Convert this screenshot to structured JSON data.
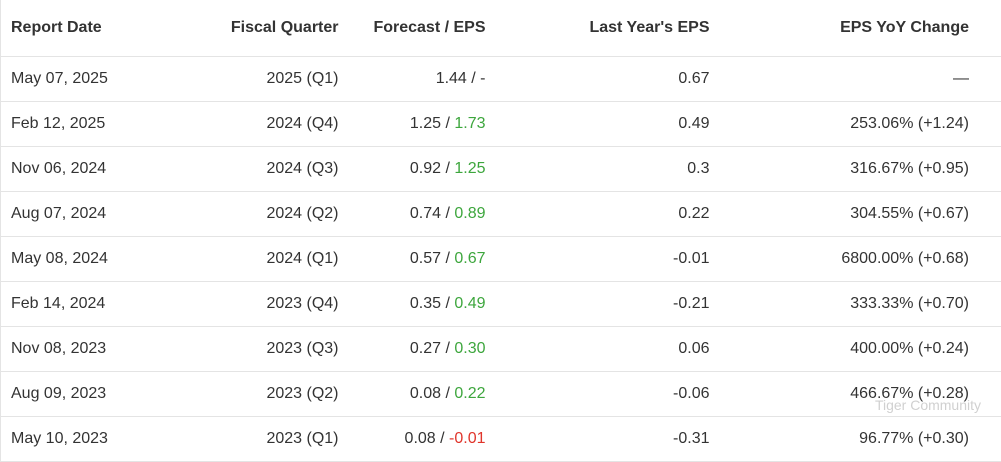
{
  "table": {
    "headers": [
      "Report Date",
      "Fiscal Quarter",
      "Forecast / EPS",
      "Last Year's EPS",
      "EPS YoY Change"
    ],
    "rows": [
      {
        "date": "May 07, 2025",
        "quarter": "2025 (Q1)",
        "forecast": "1.44 /",
        "eps": "-",
        "eps_color": "#333333",
        "last_year": "0.67",
        "change": "—"
      },
      {
        "date": "Feb 12, 2025",
        "quarter": "2024 (Q4)",
        "forecast": "1.25 /",
        "eps": "1.73",
        "eps_color": "#3da63d",
        "last_year": "0.49",
        "change": "253.06% (+1.24)"
      },
      {
        "date": "Nov 06, 2024",
        "quarter": "2024 (Q3)",
        "forecast": "0.92 /",
        "eps": "1.25",
        "eps_color": "#3da63d",
        "last_year": "0.3",
        "change": "316.67% (+0.95)"
      },
      {
        "date": "Aug 07, 2024",
        "quarter": "2024 (Q2)",
        "forecast": "0.74 /",
        "eps": "0.89",
        "eps_color": "#3da63d",
        "last_year": "0.22",
        "change": "304.55% (+0.67)"
      },
      {
        "date": "May 08, 2024",
        "quarter": "2024 (Q1)",
        "forecast": "0.57 /",
        "eps": "0.67",
        "eps_color": "#3da63d",
        "last_year": "-0.01",
        "change": "6800.00% (+0.68)"
      },
      {
        "date": "Feb 14, 2024",
        "quarter": "2023 (Q4)",
        "forecast": "0.35 /",
        "eps": "0.49",
        "eps_color": "#3da63d",
        "last_year": "-0.21",
        "change": "333.33% (+0.70)"
      },
      {
        "date": "Nov 08, 2023",
        "quarter": "2023 (Q3)",
        "forecast": "0.27 /",
        "eps": "0.30",
        "eps_color": "#3da63d",
        "last_year": "0.06",
        "change": "400.00% (+0.24)"
      },
      {
        "date": "Aug 09, 2023",
        "quarter": "2023 (Q2)",
        "forecast": "0.08 /",
        "eps": "0.22",
        "eps_color": "#3da63d",
        "last_year": "-0.06",
        "change": "466.67% (+0.28)"
      },
      {
        "date": "May 10, 2023",
        "quarter": "2023 (Q1)",
        "forecast": "0.08 /",
        "eps": "-0.01",
        "eps_color": "#e0352b",
        "last_year": "-0.31",
        "change": "96.77% (+0.30)"
      }
    ]
  },
  "watermark": "Tiger Community"
}
